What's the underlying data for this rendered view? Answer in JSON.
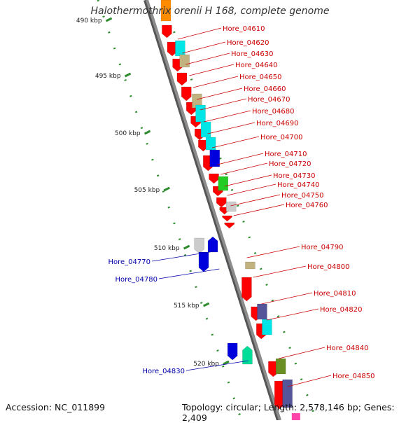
{
  "title": "Halothermothrix orenii H 168, complete genome",
  "footer": {
    "accession": "Accession: NC_011899",
    "summary": "Topology: circular; Length: 2,578,146 bp; Genes: 2,409"
  },
  "colors": {
    "backbone": "#8c8c8c",
    "scale_dots": "#2e8b2e",
    "label_forward": "#cc0000",
    "label_reverse": "#0000aa",
    "red": "#ff0000",
    "cyan": "#00e5e5",
    "tan": "#c2b280",
    "blue": "#0000dd",
    "green": "#22cc22",
    "grey": "#cccccc",
    "purple": "#555599",
    "olive": "#6b8e23",
    "teal": "#00dd99",
    "orange": "#ff8c00",
    "magenta": "#ff44aa"
  },
  "scale_marks": [
    "490 kbp",
    "495 kbp",
    "500 kbp",
    "505 kbp",
    "510 kbp",
    "515 kbp",
    "520 kbp"
  ],
  "labels_forward": [
    "Hore_04610",
    "Hore_04620",
    "Hore_04630",
    "Hore_04640",
    "Hore_04650",
    "Hore_04660",
    "Hore_04670",
    "Hore_04680",
    "Hore_04690",
    "Hore_04700",
    "Hore_04710",
    "Hore_04720",
    "Hore_04730",
    "Hore_04740",
    "Hore_04750",
    "Hore_04760",
    "Hore_04790",
    "Hore_04800",
    "Hore_04810",
    "Hore_04820",
    "Hore_04840",
    "Hore_04850"
  ],
  "labels_reverse": [
    "Hore_04770",
    "Hore_04780",
    "Hore_04830"
  ]
}
